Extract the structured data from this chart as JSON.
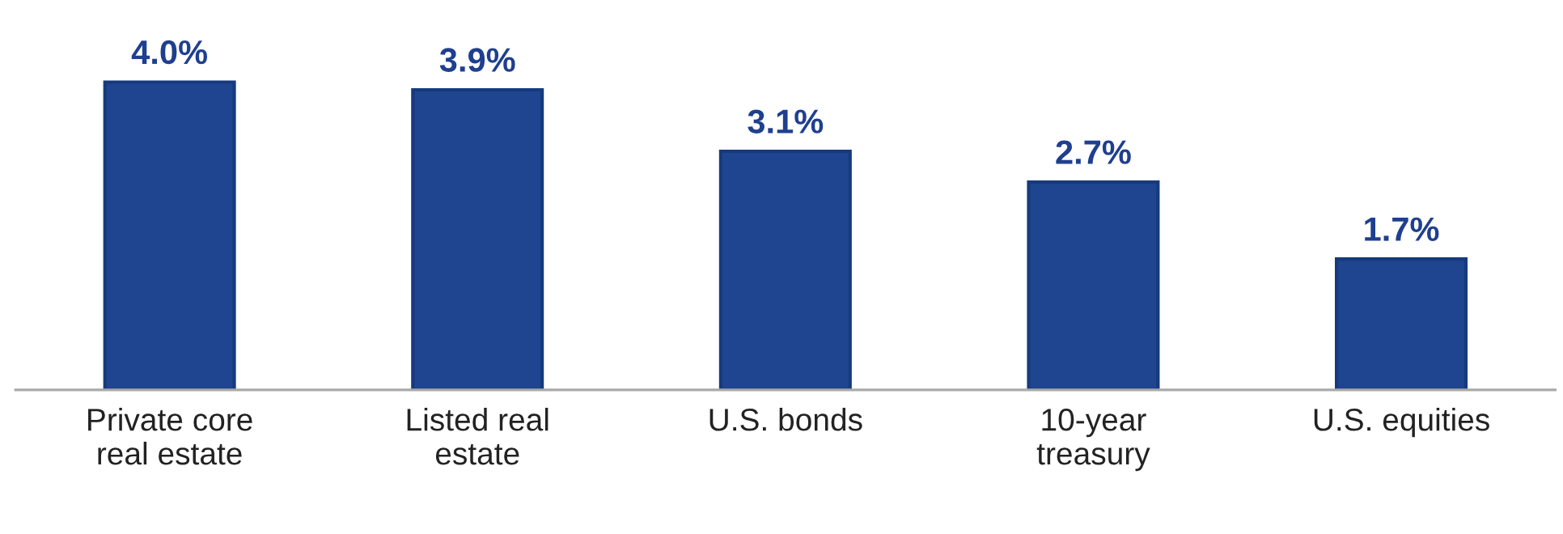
{
  "chart_data": {
    "type": "bar",
    "categories": [
      "Private core\nreal estate",
      "Listed real\nestate",
      "U.S. bonds",
      "10-year\ntreasury",
      "U.S. equities"
    ],
    "values": [
      4.0,
      3.9,
      3.1,
      2.7,
      1.7
    ],
    "value_labels": [
      "4.0%",
      "3.9%",
      "3.1%",
      "2.7%",
      "1.7%"
    ],
    "color": "#1f4590",
    "grid": false,
    "legend": false
  }
}
